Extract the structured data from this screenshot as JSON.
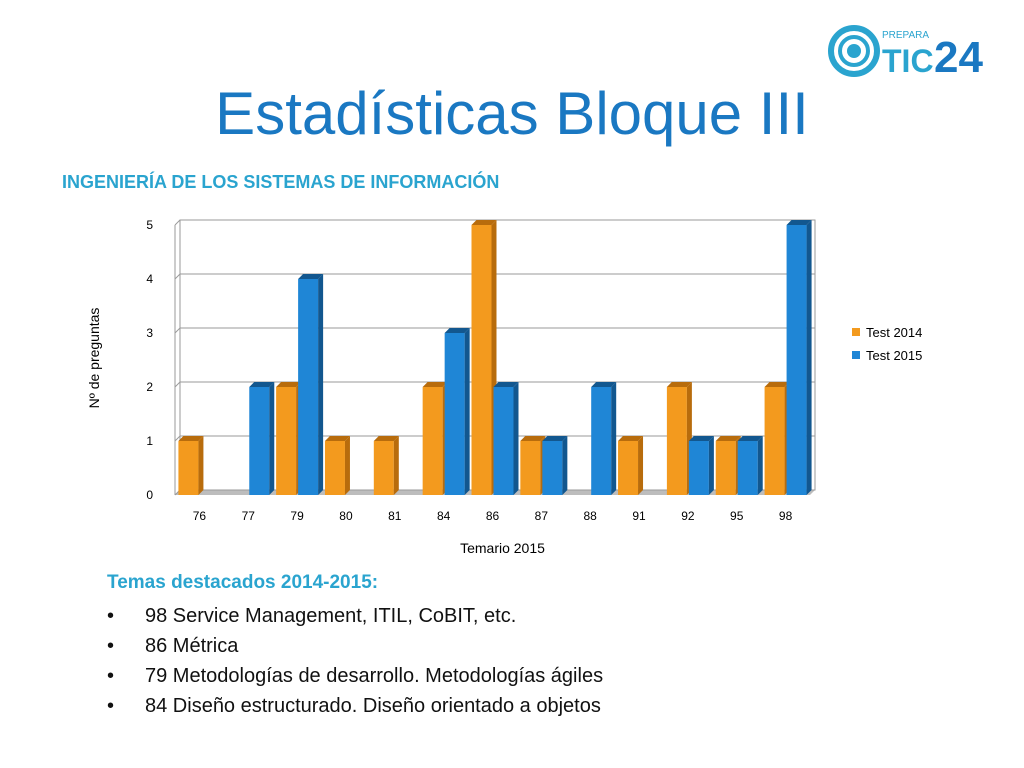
{
  "logo": {
    "prefix": "PREPARA",
    "text": "TIC",
    "number": "24"
  },
  "page_title": "Estadísticas Bloque III",
  "subtitle": "INGENIERÍA DE LOS SISTEMAS DE INFORMACIÓN",
  "colors": {
    "series_2014": "#f39a1e",
    "series_2015": "#1f86d6",
    "title": "#1a78c2",
    "accent": "#2aa4cf"
  },
  "chart_data": {
    "type": "bar",
    "title": "",
    "xlabel": "Temario 2015",
    "ylabel": "Nº de preguntas",
    "categories": [
      "76",
      "77",
      "79",
      "80",
      "81",
      "84",
      "86",
      "87",
      "88",
      "91",
      "92",
      "95",
      "98"
    ],
    "series": [
      {
        "name": "Test 2014",
        "values": [
          1,
          0,
          2,
          1,
          1,
          2,
          5,
          1,
          0,
          1,
          2,
          1,
          2
        ]
      },
      {
        "name": "Test 2015",
        "values": [
          0,
          2,
          4,
          0,
          0,
          3,
          2,
          1,
          2,
          0,
          1,
          1,
          5
        ]
      }
    ],
    "ylim": [
      0,
      5
    ],
    "yticks": [
      "0",
      "1",
      "2",
      "3",
      "4",
      "5"
    ],
    "grid": true,
    "legend": "right"
  },
  "highlights": {
    "title": "Temas destacados 2014-2015:",
    "bullet": "•",
    "items": [
      "98 Service Management, ITIL, CoBIT, etc.",
      "86 Métrica",
      "79 Metodologías de desarrollo. Metodologías ágiles",
      "84 Diseño estructurado. Diseño orientado a objetos"
    ]
  }
}
